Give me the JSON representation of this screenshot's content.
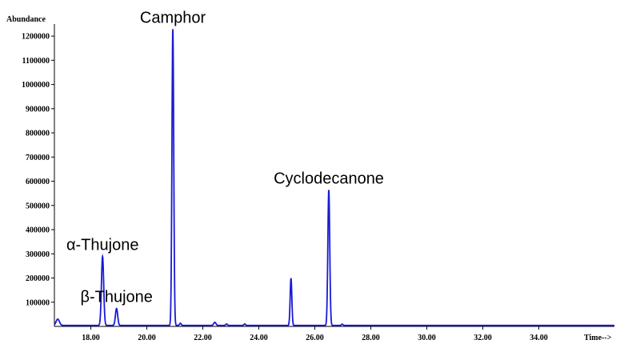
{
  "chart_data": {
    "type": "line",
    "ylabel": "Abundance",
    "xlabel": "Time-->",
    "xlim": [
      16.7,
      36.7
    ],
    "ylim": [
      0,
      1250000
    ],
    "x_ticks": [
      "18.00",
      "20.00",
      "22.00",
      "24.00",
      "26.00",
      "28.00",
      "30.00",
      "32.00",
      "34.00"
    ],
    "y_ticks": [
      "100000",
      "200000",
      "300000",
      "400000",
      "500000",
      "600000",
      "700000",
      "800000",
      "900000",
      "1000000",
      "1100000",
      "1200000"
    ],
    "series_color": "#1a1ad6",
    "baseline": 4000,
    "peaks": [
      {
        "rt": 16.82,
        "height": 26000,
        "width": 0.06
      },
      {
        "rt": 18.42,
        "height": 285000,
        "width": 0.04,
        "label": "α-Thujone"
      },
      {
        "rt": 18.92,
        "height": 70000,
        "width": 0.04,
        "label": "β-Thujone"
      },
      {
        "rt": 20.93,
        "height": 1225000,
        "width": 0.032,
        "label": "Camphor"
      },
      {
        "rt": 21.2,
        "height": 9000,
        "width": 0.03
      },
      {
        "rt": 22.43,
        "height": 13000,
        "width": 0.04
      },
      {
        "rt": 22.85,
        "height": 6000,
        "width": 0.03
      },
      {
        "rt": 23.5,
        "height": 6000,
        "width": 0.03
      },
      {
        "rt": 25.15,
        "height": 195000,
        "width": 0.03
      },
      {
        "rt": 26.5,
        "height": 560000,
        "width": 0.034,
        "label": "Cyclodecanone"
      },
      {
        "rt": 26.98,
        "height": 5000,
        "width": 0.03
      }
    ]
  }
}
